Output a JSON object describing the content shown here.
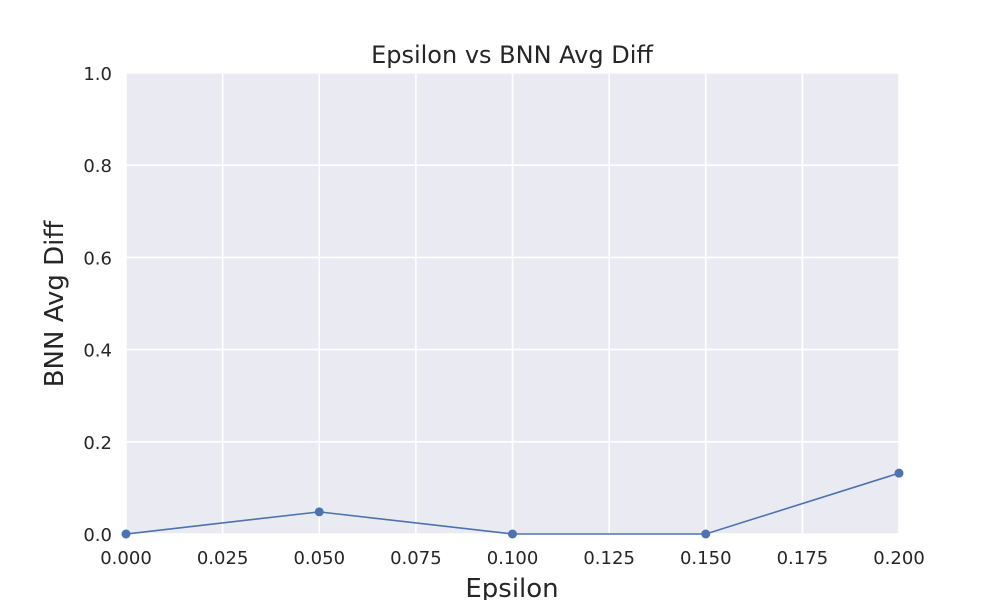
{
  "chart_data": {
    "type": "line",
    "title": "Epsilon vs BNN Avg Diff",
    "xlabel": "Epsilon",
    "ylabel": "BNN Avg Diff",
    "xlim": [
      0.0,
      0.2
    ],
    "ylim": [
      0.0,
      1.0
    ],
    "x_ticks": [
      "0.000",
      "0.025",
      "0.050",
      "0.075",
      "0.100",
      "0.125",
      "0.150",
      "0.175",
      "0.200"
    ],
    "y_ticks": [
      "0.0",
      "0.2",
      "0.4",
      "0.6",
      "0.8",
      "1.0"
    ],
    "grid": true,
    "legend": "none",
    "series": [
      {
        "x": [
          0.0,
          0.05,
          0.1,
          0.15,
          0.2
        ],
        "y": [
          0.0,
          0.048,
          0.0,
          0.0,
          0.132
        ],
        "color": "#4c72b0",
        "marker": "circle"
      }
    ]
  },
  "colors": {
    "plot_background": "#eaeaf2",
    "grid": "#ffffff",
    "line": "#4c72b0"
  }
}
